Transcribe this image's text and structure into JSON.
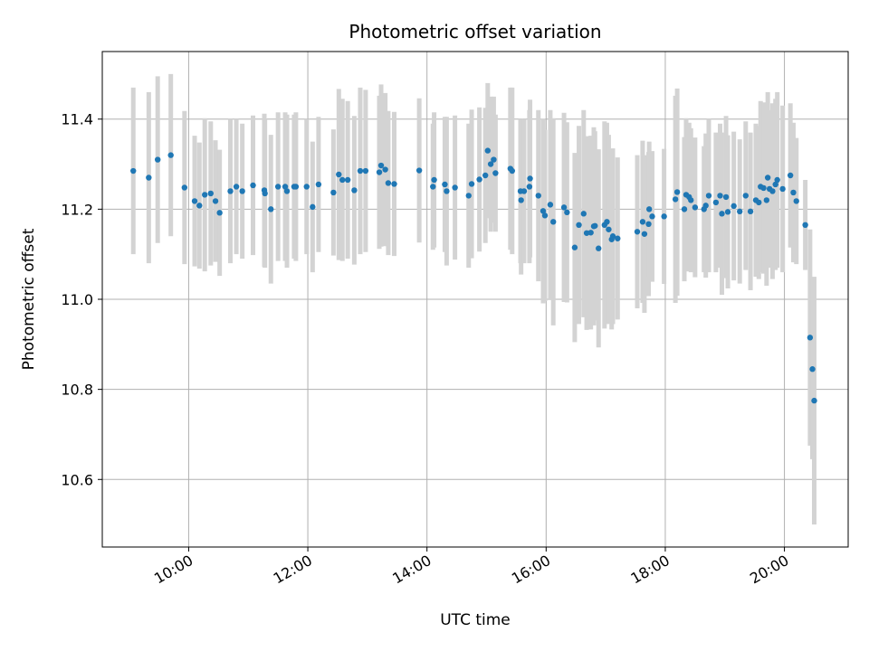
{
  "chart_data": {
    "type": "scatter",
    "title": "Photometric offset variation",
    "xlabel": "UTC time",
    "ylabel": "Photometric offset",
    "grid": true,
    "x_unit": "hour",
    "xlim": [
      8.55,
      21.07
    ],
    "ylim": [
      10.45,
      11.55
    ],
    "x_ticks": [
      10,
      12,
      14,
      16,
      18,
      20
    ],
    "x_tick_labels": [
      "10:00",
      "12:00",
      "14:00",
      "16:00",
      "18:00",
      "20:00"
    ],
    "y_ticks": [
      10.6,
      10.8,
      11.0,
      11.2,
      11.4
    ],
    "y_tick_labels": [
      "10.6",
      "10.8",
      "11.0",
      "11.2",
      "11.4"
    ],
    "colors": {
      "points": "#1f77b4",
      "errorbars": "#d3d3d3",
      "grid": "#b0b0b0"
    },
    "series": [
      {
        "x": [
          9.07,
          9.33,
          9.48,
          9.7,
          9.93,
          10.1,
          10.18,
          10.27,
          10.37,
          10.45,
          10.52,
          10.7,
          10.8,
          10.9,
          11.08,
          11.27,
          11.28,
          11.38,
          11.5,
          11.62,
          11.65,
          11.77,
          11.8,
          11.98,
          12.08,
          12.18,
          12.43,
          12.52,
          12.58,
          12.67,
          12.78,
          12.88,
          12.97,
          13.2,
          13.23,
          13.3,
          13.35,
          13.45,
          13.87,
          14.1,
          14.12,
          14.3,
          14.33,
          14.47,
          14.7,
          14.75,
          14.88,
          14.98,
          15.02,
          15.07,
          15.12,
          15.15,
          15.4,
          15.43,
          15.57,
          15.58,
          15.63,
          15.72,
          15.73,
          15.87,
          15.95,
          15.98,
          16.07,
          16.12,
          16.3,
          16.35,
          16.48,
          16.55,
          16.63,
          16.68,
          16.75,
          16.8,
          16.82,
          16.88,
          16.98,
          17.02,
          17.05,
          17.1,
          17.12,
          17.2,
          17.53,
          17.62,
          17.65,
          17.72,
          17.73,
          17.78,
          17.98,
          18.17,
          18.2,
          18.32,
          18.35,
          18.4,
          18.43,
          18.5,
          18.65,
          18.68,
          18.73,
          18.85,
          18.92,
          18.95,
          19.02,
          19.05,
          19.15,
          19.25,
          19.35,
          19.43,
          19.52,
          19.57,
          19.6,
          19.65,
          19.7,
          19.72,
          19.75,
          19.8,
          19.85,
          19.88,
          19.97,
          20.1,
          20.15,
          20.2,
          20.35,
          20.43,
          20.47,
          20.5
        ],
        "y": [
          11.285,
          11.27,
          11.31,
          11.32,
          11.248,
          11.218,
          11.208,
          11.232,
          11.235,
          11.218,
          11.192,
          11.24,
          11.25,
          11.24,
          11.253,
          11.242,
          11.235,
          11.2,
          11.25,
          11.25,
          11.24,
          11.25,
          11.25,
          11.25,
          11.205,
          11.255,
          11.237,
          11.277,
          11.265,
          11.265,
          11.242,
          11.285,
          11.285,
          11.282,
          11.297,
          11.288,
          11.258,
          11.256,
          11.286,
          11.25,
          11.265,
          11.255,
          11.24,
          11.248,
          11.23,
          11.256,
          11.266,
          11.275,
          11.33,
          11.3,
          11.31,
          11.28,
          11.29,
          11.285,
          11.24,
          11.22,
          11.24,
          11.25,
          11.268,
          11.23,
          11.196,
          11.186,
          11.21,
          11.172,
          11.204,
          11.193,
          11.115,
          11.165,
          11.19,
          11.147,
          11.148,
          11.162,
          11.163,
          11.113,
          11.165,
          11.172,
          11.155,
          11.133,
          11.14,
          11.135,
          11.15,
          11.172,
          11.145,
          11.167,
          11.2,
          11.184,
          11.184,
          11.222,
          11.238,
          11.2,
          11.232,
          11.227,
          11.22,
          11.204,
          11.2,
          11.208,
          11.23,
          11.215,
          11.23,
          11.19,
          11.227,
          11.194,
          11.207,
          11.195,
          11.23,
          11.195,
          11.22,
          11.215,
          11.25,
          11.247,
          11.22,
          11.27,
          11.245,
          11.24,
          11.255,
          11.265,
          11.245,
          11.275,
          11.237,
          11.218,
          11.165,
          10.915,
          10.845,
          10.775
        ],
        "yerr": [
          0.185,
          0.19,
          0.185,
          0.18,
          0.17,
          0.145,
          0.14,
          0.17,
          0.16,
          0.135,
          0.14,
          0.16,
          0.15,
          0.15,
          0.155,
          0.17,
          0.165,
          0.165,
          0.165,
          0.165,
          0.17,
          0.16,
          0.165,
          0.15,
          0.145,
          0.15,
          0.14,
          0.19,
          0.18,
          0.175,
          0.165,
          0.185,
          0.18,
          0.17,
          0.18,
          0.17,
          0.16,
          0.16,
          0.16,
          0.14,
          0.15,
          0.15,
          0.165,
          0.16,
          0.16,
          0.165,
          0.16,
          0.15,
          0.15,
          0.15,
          0.14,
          0.13,
          0.18,
          0.185,
          0.16,
          0.165,
          0.16,
          0.17,
          0.175,
          0.19,
          0.205,
          0.19,
          0.21,
          0.23,
          0.21,
          0.2,
          0.21,
          0.22,
          0.23,
          0.215,
          0.215,
          0.22,
          0.21,
          0.22,
          0.23,
          0.22,
          0.21,
          0.2,
          0.195,
          0.18,
          0.17,
          0.18,
          0.175,
          0.16,
          0.15,
          0.145,
          0.15,
          0.23,
          0.23,
          0.16,
          0.17,
          0.165,
          0.16,
          0.155,
          0.14,
          0.16,
          0.17,
          0.155,
          0.16,
          0.18,
          0.18,
          0.17,
          0.165,
          0.16,
          0.165,
          0.175,
          0.17,
          0.17,
          0.19,
          0.19,
          0.19,
          0.19,
          0.175,
          0.195,
          0.19,
          0.195,
          0.185,
          0.16,
          0.155,
          0.14,
          0.1,
          0.24,
          0.2,
          0.275
        ]
      }
    ]
  }
}
